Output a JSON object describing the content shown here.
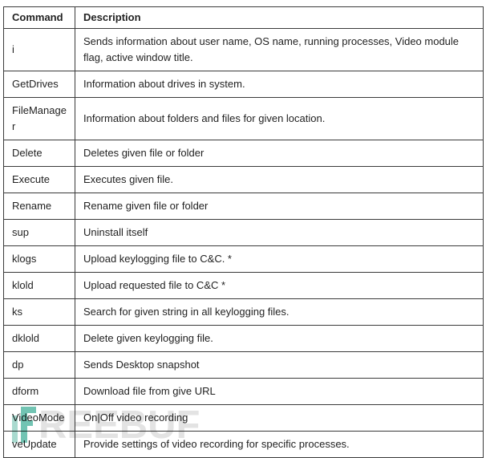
{
  "table": {
    "columns": [
      {
        "label": "Command"
      },
      {
        "label": "Description"
      }
    ],
    "rows": [
      {
        "command": "i",
        "description": "Sends information about user name, OS name, running processes, Video module flag, active window title."
      },
      {
        "command": "GetDrives",
        "description": "Information about drives in system."
      },
      {
        "command": "FileManager",
        "description": "Information about folders and files for given location."
      },
      {
        "command": "Delete",
        "description": "Deletes given file or folder"
      },
      {
        "command": "Execute",
        "description": "Executes given file."
      },
      {
        "command": "Rename",
        "description": "Rename given file or folder"
      },
      {
        "command": "sup",
        "description": "Uninstall itself"
      },
      {
        "command": "klogs",
        "description": "Upload keylogging file to C&C. *"
      },
      {
        "command": "klold",
        "description": "Upload requested file to C&C *"
      },
      {
        "command": "ks",
        "description": "Search for given string in all keylogging files."
      },
      {
        "command": "dklold",
        "description": "Delete given keylogging file."
      },
      {
        "command": "dp",
        "description": "Sends Desktop snapshot"
      },
      {
        "command": "dform",
        "description": "Download file from give URL"
      },
      {
        "command": "VideoMode",
        "description": "On|Off video recording"
      },
      {
        "command": "veUpdate",
        "description": "Provide settings of video recording for specific processes."
      }
    ]
  },
  "watermark": {
    "text": "REEBUF",
    "logo_color": "#72c4b3",
    "logo_color_light": "#a9dacf",
    "text_color": "#e3e3e3"
  }
}
